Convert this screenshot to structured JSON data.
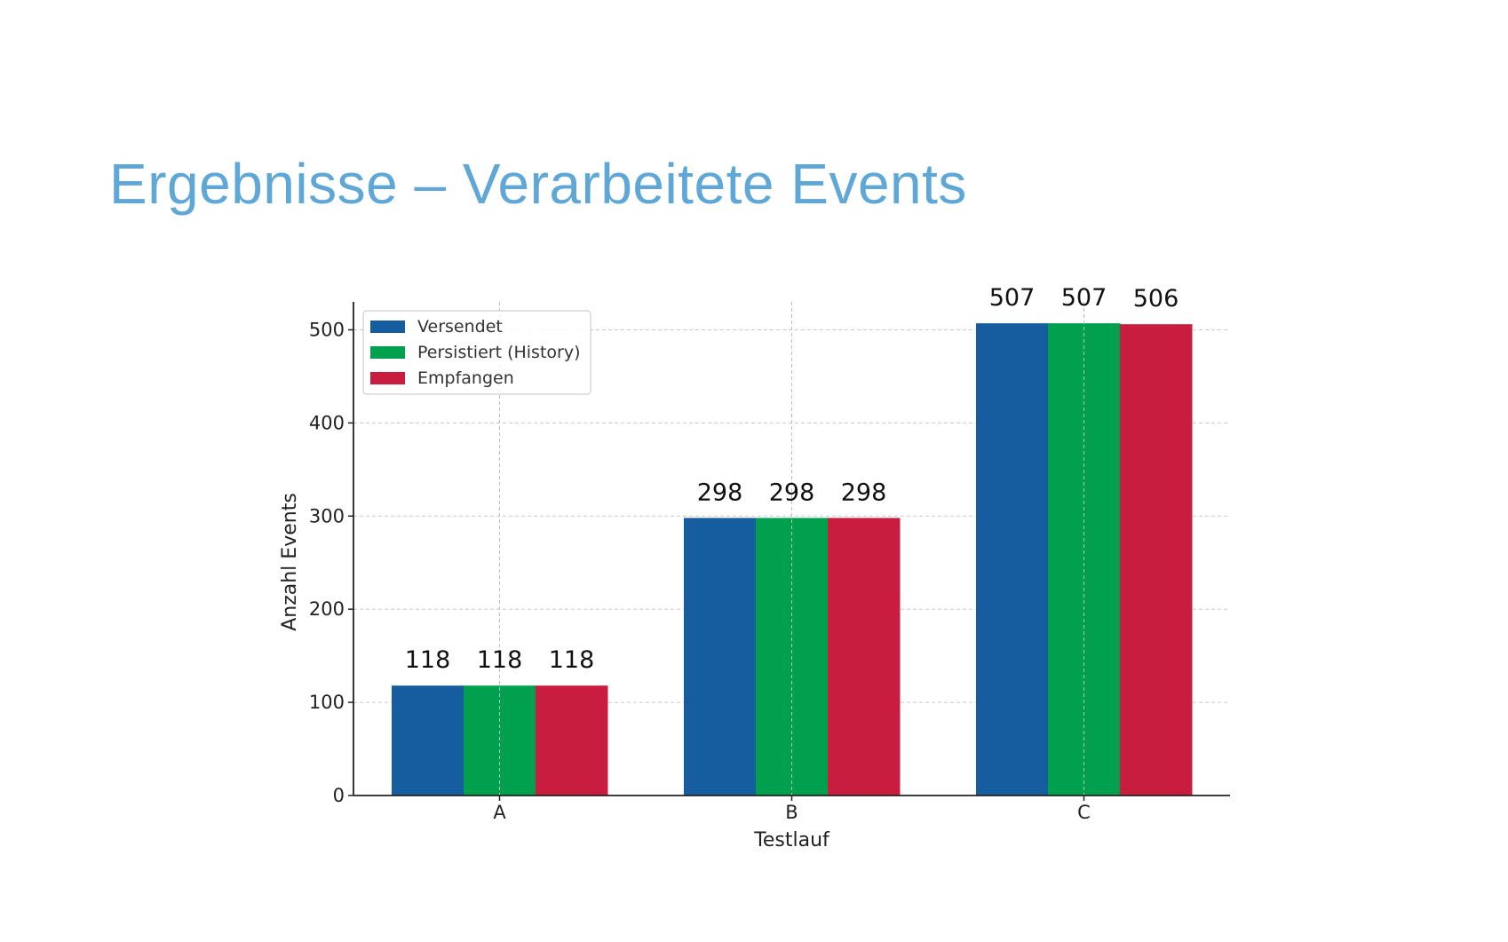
{
  "slide": {
    "title": "Ergebnisse – Verarbeitete Events"
  },
  "chart_data": {
    "type": "bar",
    "categories": [
      "A",
      "B",
      "C"
    ],
    "series": [
      {
        "name": "Versendet",
        "values": [
          118,
          298,
          507
        ],
        "color": "#165da0"
      },
      {
        "name": "Persistiert (History)",
        "values": [
          118,
          298,
          507
        ],
        "color": "#00a04e"
      },
      {
        "name": "Empfangen",
        "values": [
          118,
          298,
          506
        ],
        "color": "#c91d3f"
      }
    ],
    "title": "",
    "xlabel": "Testlauf",
    "ylabel": "Anzahl Events",
    "ylim": [
      0,
      530
    ],
    "yticks": [
      0,
      100,
      200,
      300,
      400,
      500
    ],
    "grid": true,
    "legend_position": "top-left",
    "data_labels": true
  }
}
